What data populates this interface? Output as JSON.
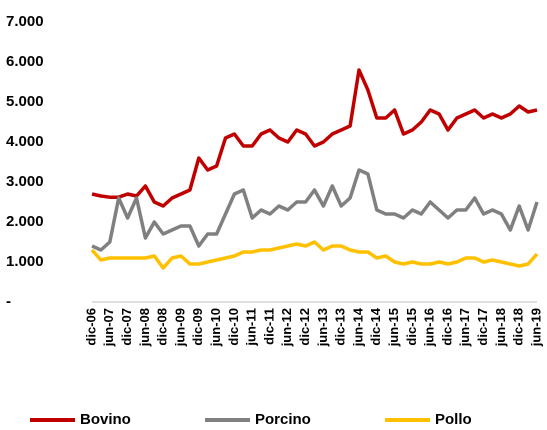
{
  "chart_data": {
    "type": "line",
    "categories": [
      "dic-06",
      null,
      "jun-07",
      null,
      "dic-07",
      null,
      "jun-08",
      null,
      "dic-08",
      null,
      "jun-09",
      null,
      "dic-09",
      null,
      "jun-10",
      null,
      "dic-10",
      null,
      "jun-11",
      null,
      "dic-11",
      null,
      "jun-12",
      null,
      "dic-12",
      null,
      "jun-13",
      null,
      "dic-13",
      null,
      "jun-14",
      null,
      "dic-14",
      null,
      "jun-15",
      null,
      "dic-15",
      null,
      "jun-16",
      null,
      "dic-16",
      null,
      "jun-17",
      null,
      "dic-17",
      null,
      "jun-18",
      null,
      "dic-18",
      null,
      "jun-19"
    ],
    "series": [
      {
        "name": "Bovino",
        "color": "#c00000",
        "values": [
          2700,
          2650,
          2620,
          2620,
          2700,
          2650,
          2900,
          2500,
          2400,
          2600,
          2700,
          2800,
          3600,
          3300,
          3400,
          4100,
          4200,
          3900,
          3900,
          4200,
          4300,
          4100,
          4000,
          4300,
          4200,
          3900,
          4000,
          4200,
          4300,
          4400,
          5800,
          5300,
          4600,
          4600,
          4800,
          4200,
          4300,
          4500,
          4800,
          4700,
          4300,
          4600,
          4700,
          4800,
          4600,
          4700,
          4600,
          4700,
          4900,
          4750,
          4800
        ]
      },
      {
        "name": "Porcino",
        "color": "#808080",
        "values": [
          1400,
          1300,
          1500,
          2600,
          2100,
          2600,
          1600,
          2000,
          1700,
          1800,
          1900,
          1900,
          1400,
          1700,
          1700,
          2200,
          2700,
          2800,
          2100,
          2300,
          2200,
          2400,
          2300,
          2500,
          2500,
          2800,
          2400,
          2900,
          2400,
          2600,
          3300,
          3200,
          2300,
          2200,
          2200,
          2100,
          2300,
          2200,
          2500,
          2300,
          2100,
          2300,
          2300,
          2600,
          2200,
          2300,
          2200,
          1800,
          2400,
          1800,
          2500
        ]
      },
      {
        "name": "Pollo",
        "color": "#ffc000",
        "values": [
          1300,
          1050,
          1100,
          1100,
          1100,
          1100,
          1100,
          1150,
          850,
          1100,
          1150,
          950,
          950,
          1000,
          1050,
          1100,
          1150,
          1250,
          1250,
          1300,
          1300,
          1350,
          1400,
          1450,
          1400,
          1500,
          1300,
          1400,
          1400,
          1300,
          1250,
          1250,
          1100,
          1150,
          1000,
          950,
          1000,
          950,
          950,
          1000,
          950,
          1000,
          1100,
          1100,
          1000,
          1050,
          1000,
          950,
          900,
          950,
          1200
        ]
      }
    ],
    "ylim": [
      0,
      7000
    ],
    "yticks": [
      {
        "value": 0,
        "label": "-"
      },
      {
        "value": 1000,
        "label": "1.000"
      },
      {
        "value": 2000,
        "label": "2.000"
      },
      {
        "value": 3000,
        "label": "3.000"
      },
      {
        "value": 4000,
        "label": "4.000"
      },
      {
        "value": 5000,
        "label": "5.000"
      },
      {
        "value": 6000,
        "label": "6.000"
      },
      {
        "value": 7000,
        "label": "7.000"
      }
    ],
    "grid": false,
    "legend": "bottom"
  }
}
